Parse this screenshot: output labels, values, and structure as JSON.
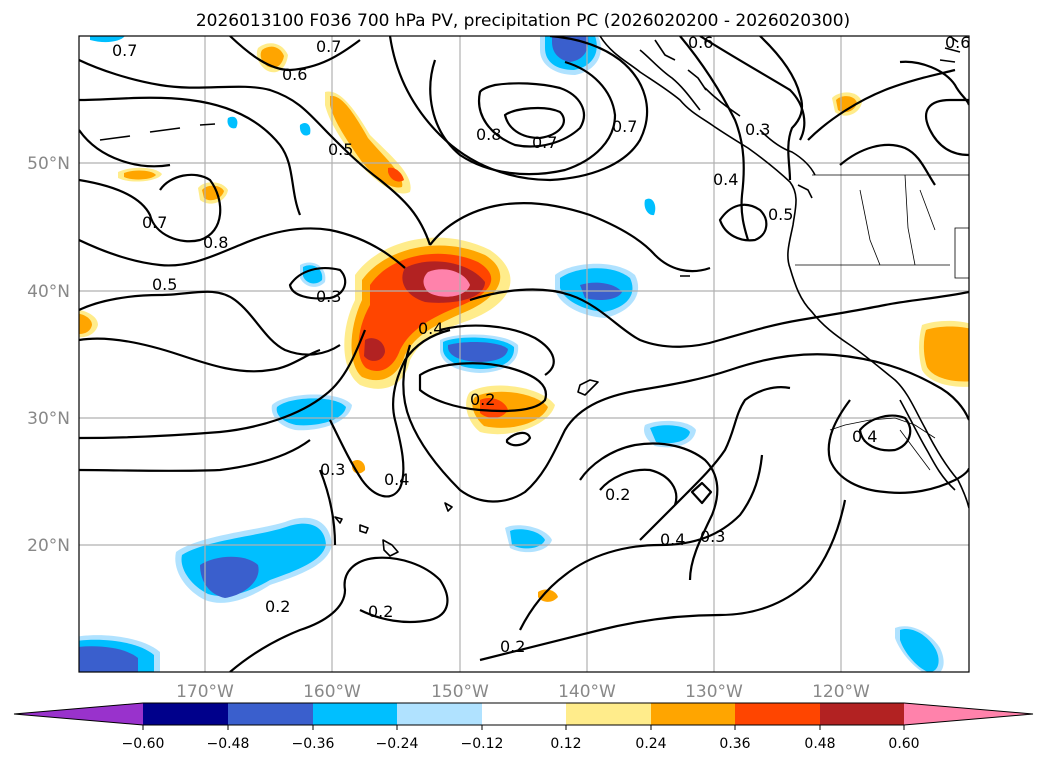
{
  "title": "2026013100 F036 700 hPa PV, precipitation PC (2026020200 - 2026020300)",
  "colors": {
    "neg_extreme": "#9932cc",
    "neg_060": "#00008b",
    "neg_048": "#3a5fcd",
    "neg_036": "#00bfff",
    "neg_024": "#b0e2ff",
    "neutral": "#ffffff",
    "pos_012": "#ffec8b",
    "pos_024": "#ffa500",
    "pos_036": "#ff4500",
    "pos_048": "#b22222",
    "pos_extreme": "#ff82ab"
  },
  "map": {
    "lon_labels": [
      "170°W",
      "160°W",
      "150°W",
      "140°W",
      "130°W",
      "120°W"
    ],
    "lat_labels": [
      "50°N",
      "40°N",
      "30°N",
      "20°N"
    ]
  },
  "contour_labels": [
    "0.7",
    "0.7",
    "0.6",
    "0.6",
    "0.6",
    "0.5",
    "0.8",
    "0.7",
    "0.7",
    "0.3",
    "0.4",
    "0.5",
    "0.7",
    "0.8",
    "0.5",
    "0.3",
    "0.4",
    "0.2",
    "0.4",
    "0.3",
    "0.2",
    "0.2",
    "0.2",
    "0.4",
    "0.3",
    "0.2",
    "0.4"
  ],
  "colorbar": {
    "tick_labels": [
      "−0.60",
      "−0.48",
      "−0.36",
      "−0.24",
      "−0.12",
      "0.12",
      "0.24",
      "0.36",
      "0.48",
      "0.60"
    ]
  }
}
